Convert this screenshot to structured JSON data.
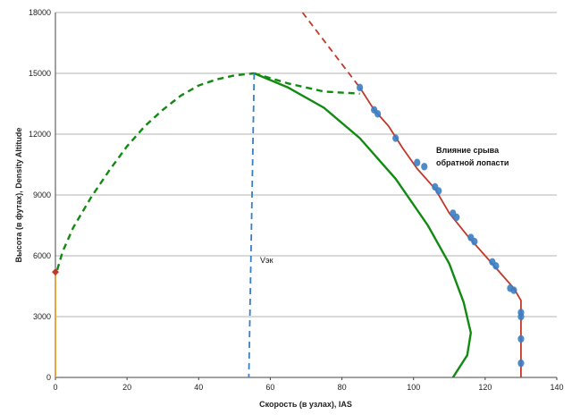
{
  "chart_data": {
    "type": "line",
    "xlabel": "Скорость (в узлах), IAS",
    "ylabel": "Высота (в футах), Density Altitude",
    "xlim": [
      0,
      140
    ],
    "ylim": [
      0,
      18000
    ],
    "x_ticks": [
      "0",
      "20",
      "40",
      "60",
      "80",
      "100",
      "120",
      "140"
    ],
    "y_ticks": [
      "0",
      "3000",
      "6000",
      "9000",
      "12000",
      "15000",
      "18000"
    ],
    "grid": "horizontal",
    "legend": "none",
    "annotations": {
      "retreating_blade_line1": "Влияние срыва",
      "retreating_blade_line2": "обратной лопасти",
      "vy": "Vэк"
    },
    "colors": {
      "green": "#118a11",
      "blue": "#3a7ec4",
      "red": "#c0392b",
      "orange": "#e39a2d",
      "grid": "#9a9a9a"
    },
    "series": [
      {
        "style": "dashed",
        "color": "green",
        "points": [
          [
            0.5,
            5300
          ],
          [
            2,
            6200
          ],
          [
            5,
            7400
          ],
          [
            10,
            8900
          ],
          [
            15,
            10200
          ],
          [
            20,
            11400
          ],
          [
            25,
            12400
          ],
          [
            30,
            13200
          ],
          [
            35,
            13900
          ],
          [
            40,
            14400
          ],
          [
            45,
            14700
          ],
          [
            50,
            14900
          ],
          [
            55.5,
            15000
          ]
        ]
      },
      {
        "style": "dashed",
        "color": "green",
        "points": [
          [
            55.5,
            15000
          ],
          [
            65,
            14500
          ],
          [
            75,
            14100
          ],
          [
            85,
            14000
          ]
        ]
      },
      {
        "style": "solid",
        "color": "green",
        "points": [
          [
            55.5,
            15000
          ],
          [
            65,
            14300
          ],
          [
            75,
            13300
          ],
          [
            85,
            11800
          ],
          [
            95,
            9800
          ],
          [
            104,
            7500
          ],
          [
            110,
            5600
          ],
          [
            114,
            3700
          ],
          [
            116,
            2200
          ],
          [
            115,
            1100
          ],
          [
            111,
            0
          ]
        ]
      },
      {
        "style": "dashed",
        "color": "blue",
        "points": [
          [
            55.5,
            15000
          ],
          [
            54,
            0
          ]
        ]
      },
      {
        "style": "dashed",
        "color": "red",
        "points": [
          [
            69,
            18000
          ],
          [
            85,
            14300
          ]
        ]
      },
      {
        "style": "solid",
        "color": "red",
        "points": [
          [
            85,
            14300
          ],
          [
            89,
            13200
          ],
          [
            93,
            12400
          ],
          [
            97,
            11300
          ],
          [
            101,
            10300
          ],
          [
            106,
            9300
          ],
          [
            110,
            8100
          ],
          [
            115,
            7000
          ],
          [
            120,
            6000
          ],
          [
            124,
            5200
          ],
          [
            128,
            4400
          ],
          [
            130,
            3800
          ],
          [
            130,
            0
          ]
        ]
      },
      {
        "style": "solid",
        "color": "orange",
        "points": [
          [
            0,
            5200
          ],
          [
            0,
            0
          ]
        ]
      },
      {
        "style": "markers",
        "color": "blue",
        "points": [
          [
            85,
            14300
          ],
          [
            89,
            13200
          ],
          [
            90,
            13000
          ],
          [
            95,
            11800
          ],
          [
            101,
            10600
          ],
          [
            103,
            10400
          ],
          [
            106,
            9400
          ],
          [
            107,
            9200
          ],
          [
            111,
            8100
          ],
          [
            112,
            7900
          ],
          [
            116,
            6900
          ],
          [
            117,
            6700
          ],
          [
            122,
            5700
          ],
          [
            123,
            5500
          ],
          [
            127,
            4400
          ],
          [
            128,
            4300
          ],
          [
            130,
            3200
          ],
          [
            130,
            3000
          ],
          [
            130,
            1900
          ],
          [
            130,
            700
          ]
        ]
      },
      {
        "style": "markers",
        "color": "red",
        "points": [
          [
            0,
            5200
          ]
        ]
      }
    ]
  }
}
